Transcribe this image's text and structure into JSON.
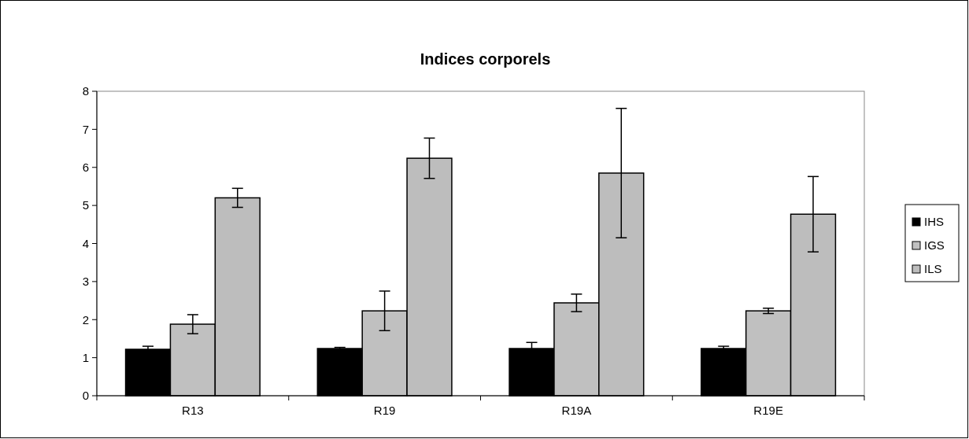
{
  "chart_data": {
    "type": "bar",
    "title": "Indices corporels",
    "categories": [
      "R13",
      "R19",
      "R19A",
      "R19E"
    ],
    "series": [
      {
        "name": "IHS",
        "color": "#000000",
        "values": [
          1.22,
          1.24,
          1.24,
          1.24
        ],
        "errors": [
          0.08,
          0.03,
          0.16,
          0.06
        ]
      },
      {
        "name": "IGS",
        "color": "#c0c0c0",
        "values": [
          1.88,
          2.23,
          2.44,
          2.23
        ],
        "errors": [
          0.25,
          0.52,
          0.23,
          0.07
        ]
      },
      {
        "name": "ILS",
        "color": "#bdbdbd",
        "values": [
          5.2,
          6.24,
          5.85,
          4.77
        ],
        "errors": [
          0.25,
          0.53,
          1.7,
          0.99
        ]
      }
    ],
    "ylim": [
      0,
      8
    ],
    "yticks": [
      0,
      1,
      2,
      3,
      4,
      5,
      6,
      7,
      8
    ],
    "grid": false,
    "legend": "right"
  }
}
